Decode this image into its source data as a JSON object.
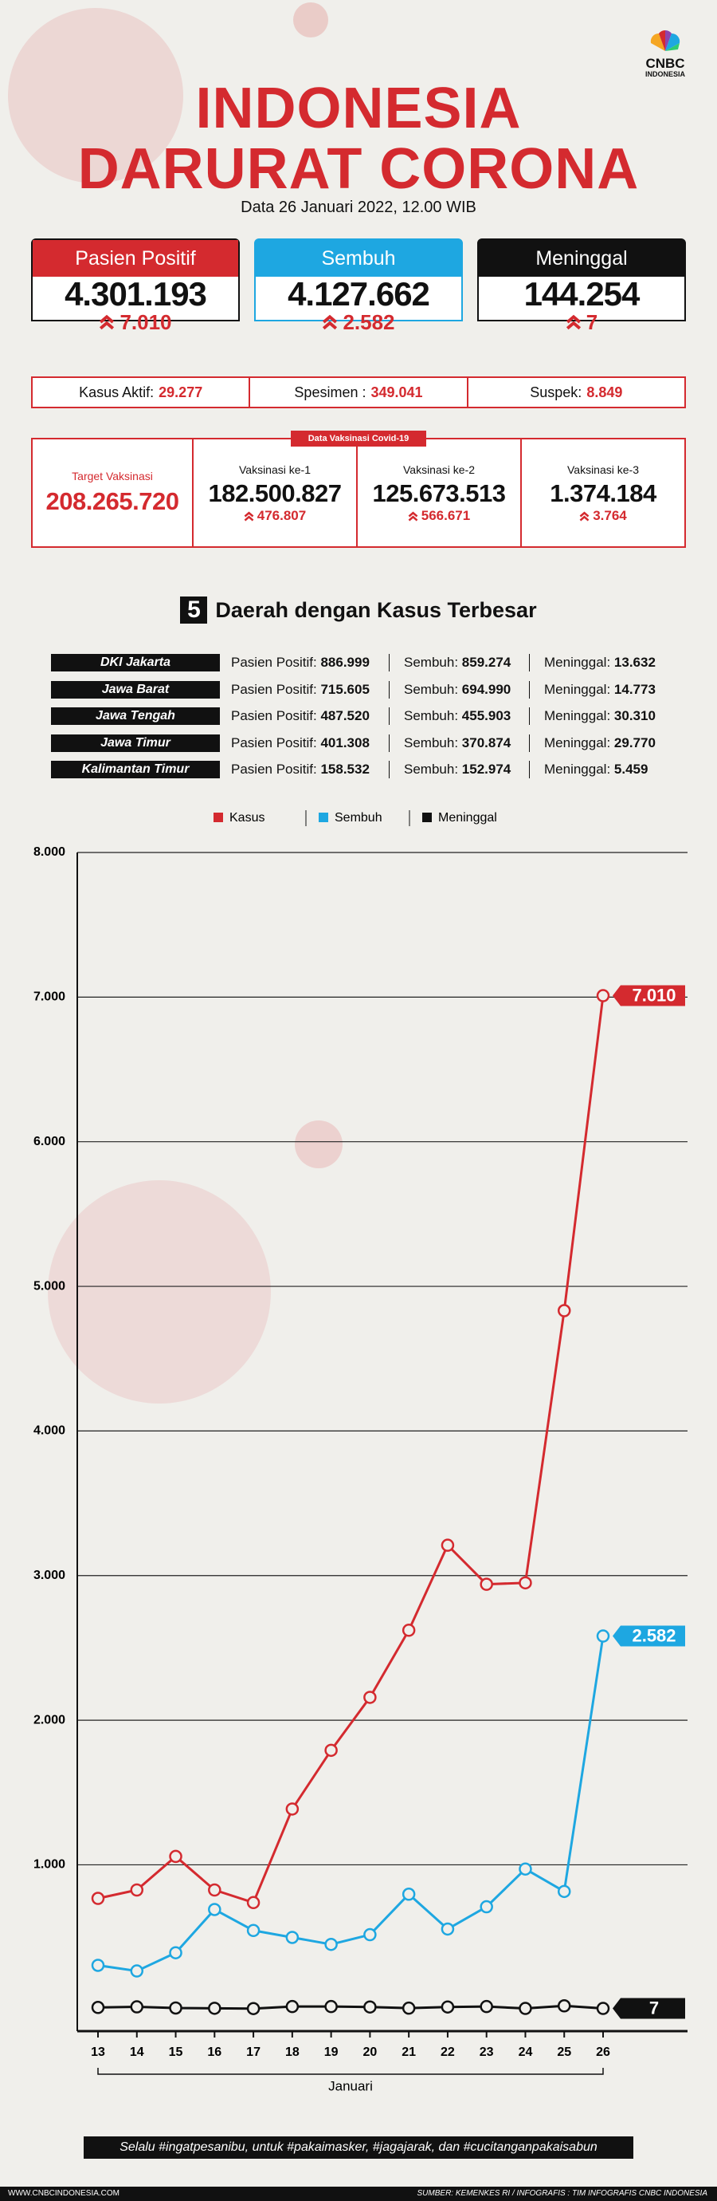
{
  "header": {
    "logo": "CNBC",
    "logo_sub": "INDONESIA",
    "title_line1": "INDONESIA",
    "title_line2": "DARURAT CORONA",
    "date": "Data 26 Januari 2022, 12.00 WIB"
  },
  "summary": [
    {
      "label": "Pasien Positif",
      "value": "4.301.193",
      "change": "7.010"
    },
    {
      "label": "Sembuh",
      "value": "4.127.662",
      "change": "2.582"
    },
    {
      "label": "Meninggal",
      "value": "144.254",
      "change": "7"
    }
  ],
  "stats": [
    {
      "label": "Kasus Aktif:",
      "value": "29.277"
    },
    {
      "label": "Spesimen :",
      "value": "349.041"
    },
    {
      "label": "Suspek:",
      "value": "8.849"
    }
  ],
  "vaccination": {
    "tag": "Data Vaksinasi Covid-19",
    "target_label": "Target Vaksinasi",
    "target_value": "208.265.720",
    "doses": [
      {
        "label": "Vaksinasi ke-1",
        "value": "182.500.827",
        "change": "476.807"
      },
      {
        "label": "Vaksinasi ke-2",
        "value": "125.673.513",
        "change": "566.671"
      },
      {
        "label": "Vaksinasi ke-3",
        "value": "1.374.184",
        "change": "3.764"
      }
    ]
  },
  "regions": {
    "number": "5",
    "title": "Daerah dengan Kasus Terbesar",
    "labels": [
      "Pasien Positif:",
      "Sembuh:",
      "Meninggal:"
    ],
    "rows": [
      [
        "DKI Jakarta",
        "886.999",
        "859.274",
        "13.632"
      ],
      [
        "Jawa Barat",
        "715.605",
        "694.990",
        "14.773"
      ],
      [
        "Jawa Tengah",
        "487.520",
        "455.903",
        "30.310"
      ],
      [
        "Jawa Timur",
        "401.308",
        "370.874",
        "29.770"
      ],
      [
        "Kalimantan Timur",
        "158.532",
        "152.974",
        "5.459"
      ]
    ]
  },
  "chart_data": {
    "type": "line",
    "categories": [
      "13",
      "14",
      "15",
      "16",
      "17",
      "18",
      "19",
      "20",
      "21",
      "22",
      "23",
      "24",
      "25",
      "26"
    ],
    "x_label": "Januari",
    "ylim": [
      -150,
      8000
    ],
    "yticks": [
      {
        "value": 1000,
        "label": "1.000"
      },
      {
        "value": 2000,
        "label": "2.000"
      },
      {
        "value": 3000,
        "label": "3.000"
      },
      {
        "value": 4000,
        "label": "4.000"
      },
      {
        "value": 5000,
        "label": "5.000"
      },
      {
        "value": 6000,
        "label": "6.000"
      },
      {
        "value": 7000,
        "label": "7.000"
      },
      {
        "value": 8000,
        "label": "8.000"
      }
    ],
    "grid": true,
    "series": [
      {
        "name": "Kasus",
        "color": "#d42a2f",
        "values": [
          768,
          826,
          1058,
          826,
          739,
          1386,
          1792,
          2158,
          2622,
          3210,
          2940,
          2950,
          4832,
          7010
        ],
        "value_labels": [
          null,
          null,
          null,
          null,
          null,
          null,
          null,
          null,
          null,
          null,
          null,
          null,
          null,
          "7.010"
        ]
      },
      {
        "name": "Sembuh",
        "color": "#1ea7e1",
        "values": [
          305,
          266,
          392,
          691,
          546,
          498,
          450,
          517,
          797,
          556,
          710,
          971,
          816,
          2582
        ],
        "value_labels": [
          null,
          null,
          null,
          null,
          null,
          null,
          null,
          null,
          null,
          null,
          null,
          null,
          null,
          "2.582"
        ]
      },
      {
        "name": "Meninggal",
        "color": "#111111",
        "values": [
          14,
          18,
          10,
          8,
          6,
          20,
          20,
          17,
          9,
          17,
          20,
          7,
          25,
          7
        ],
        "value_labels": [
          null,
          null,
          null,
          null,
          null,
          null,
          null,
          null,
          null,
          null,
          null,
          null,
          null,
          "7"
        ]
      }
    ]
  },
  "footer": {
    "slogan": "Selalu #ingatpesanibu, untuk #pakaimasker, #jagajarak, dan #cucitanganpakaisabun",
    "site": "WWW.CNBCINDONESIA.COM",
    "source": "SUMBER: KEMENKES RI / INFOGRAFIS : TIM INFOGRAFIS CNBC INDONESIA"
  }
}
